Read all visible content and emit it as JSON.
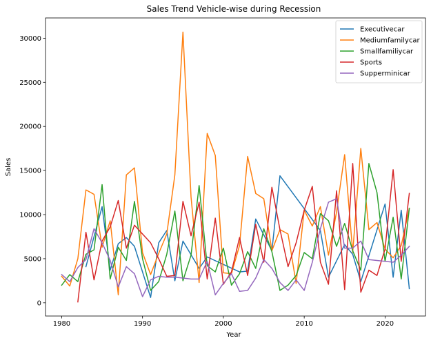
{
  "chart_data": {
    "type": "line",
    "title": "Sales Trend Vehicle-wise during Recession",
    "xlabel": "Year",
    "ylabel": "Sales",
    "xlim": [
      1978,
      2025
    ],
    "ylim": [
      -1500,
      32300
    ],
    "xticks": [
      1980,
      1990,
      2000,
      2010,
      2020
    ],
    "yticks": [
      0,
      5000,
      10000,
      15000,
      20000,
      25000,
      30000
    ],
    "grid": false,
    "legend_position": "top-right",
    "series": [
      {
        "name": "Executivecar",
        "color": "#1f77b4",
        "points": [
          [
            1983,
            4100
          ],
          [
            1985,
            10900
          ],
          [
            1986,
            3700
          ],
          [
            1987,
            6700
          ],
          [
            1988,
            7400
          ],
          [
            1989,
            6400
          ],
          [
            1991,
            600
          ],
          [
            1992,
            6800
          ],
          [
            1993,
            8200
          ],
          [
            1994,
            2500
          ],
          [
            1995,
            7000
          ],
          [
            1997,
            3900
          ],
          [
            1998,
            5200
          ],
          [
            2002,
            3500
          ],
          [
            2003,
            3600
          ],
          [
            2004,
            9500
          ],
          [
            2006,
            5900
          ],
          [
            2007,
            14400
          ],
          [
            2012,
            8200
          ],
          [
            2013,
            2900
          ],
          [
            2015,
            6600
          ],
          [
            2016,
            5500
          ],
          [
            2017,
            2400
          ],
          [
            2020,
            11200
          ],
          [
            2021,
            2900
          ],
          [
            2022,
            10500
          ],
          [
            2023,
            1600
          ]
        ]
      },
      {
        "name": "Mediumfamilycar",
        "color": "#ff7f0e",
        "points": [
          [
            1980,
            3000
          ],
          [
            1981,
            1900
          ],
          [
            1982,
            5000
          ],
          [
            1983,
            12800
          ],
          [
            1984,
            12300
          ],
          [
            1985,
            6300
          ],
          [
            1986,
            9300
          ],
          [
            1987,
            900
          ],
          [
            1988,
            14500
          ],
          [
            1989,
            15300
          ],
          [
            1990,
            5700
          ],
          [
            1991,
            3200
          ],
          [
            1992,
            5600
          ],
          [
            1993,
            7800
          ],
          [
            1994,
            14500
          ],
          [
            1995,
            30700
          ],
          [
            1996,
            12000
          ],
          [
            1997,
            2300
          ],
          [
            1998,
            19200
          ],
          [
            1999,
            16700
          ],
          [
            2000,
            3400
          ],
          [
            2001,
            3300
          ],
          [
            2002,
            6500
          ],
          [
            2003,
            16600
          ],
          [
            2004,
            12400
          ],
          [
            2005,
            11800
          ],
          [
            2006,
            5900
          ],
          [
            2007,
            8300
          ],
          [
            2008,
            7800
          ],
          [
            2009,
            2200
          ],
          [
            2010,
            10500
          ],
          [
            2011,
            8700
          ],
          [
            2012,
            10900
          ],
          [
            2013,
            5400
          ],
          [
            2014,
            10300
          ],
          [
            2015,
            16800
          ],
          [
            2016,
            5700
          ],
          [
            2017,
            17500
          ],
          [
            2018,
            8300
          ],
          [
            2019,
            9100
          ],
          [
            2020,
            6100
          ],
          [
            2021,
            5100
          ],
          [
            2022,
            6500
          ],
          [
            2023,
            10700
          ]
        ]
      },
      {
        "name": "Smallfamiliycar",
        "color": "#2ca02c",
        "points": [
          [
            1980,
            2000
          ],
          [
            1981,
            3200
          ],
          [
            1982,
            2400
          ],
          [
            1983,
            5500
          ],
          [
            1984,
            6000
          ],
          [
            1985,
            13400
          ],
          [
            1986,
            2700
          ],
          [
            1987,
            6300
          ],
          [
            1988,
            4800
          ],
          [
            1989,
            11500
          ],
          [
            1990,
            5000
          ],
          [
            1991,
            1400
          ],
          [
            1992,
            2400
          ],
          [
            1993,
            5500
          ],
          [
            1994,
            10400
          ],
          [
            1995,
            2500
          ],
          [
            1996,
            5400
          ],
          [
            1997,
            13300
          ],
          [
            1998,
            4200
          ],
          [
            1999,
            3500
          ],
          [
            2000,
            6200
          ],
          [
            2001,
            2000
          ],
          [
            2002,
            3300
          ],
          [
            2003,
            5800
          ],
          [
            2004,
            3900
          ],
          [
            2005,
            8400
          ],
          [
            2006,
            5800
          ],
          [
            2007,
            1400
          ],
          [
            2008,
            2000
          ],
          [
            2009,
            3100
          ],
          [
            2010,
            5700
          ],
          [
            2011,
            5000
          ],
          [
            2012,
            10100
          ],
          [
            2013,
            9300
          ],
          [
            2014,
            6400
          ],
          [
            2015,
            9000
          ],
          [
            2016,
            5900
          ],
          [
            2017,
            3700
          ],
          [
            2018,
            15800
          ],
          [
            2019,
            12500
          ],
          [
            2020,
            4700
          ],
          [
            2021,
            9700
          ],
          [
            2022,
            2700
          ],
          [
            2023,
            10700
          ]
        ]
      },
      {
        "name": "Sports",
        "color": "#d62728",
        "points": [
          [
            1982,
            100
          ],
          [
            1983,
            8000
          ],
          [
            1984,
            2600
          ],
          [
            1985,
            7000
          ],
          [
            1986,
            8600
          ],
          [
            1987,
            11600
          ],
          [
            1988,
            6200
          ],
          [
            1989,
            8800
          ],
          [
            1991,
            6800
          ],
          [
            1992,
            5000
          ],
          [
            1993,
            3000
          ],
          [
            1994,
            3100
          ],
          [
            1995,
            11500
          ],
          [
            1996,
            7600
          ],
          [
            1997,
            11400
          ],
          [
            1998,
            2700
          ],
          [
            1999,
            9600
          ],
          [
            2000,
            2100
          ],
          [
            2001,
            3500
          ],
          [
            2002,
            7400
          ],
          [
            2003,
            3100
          ],
          [
            2004,
            8900
          ],
          [
            2005,
            4600
          ],
          [
            2006,
            13100
          ],
          [
            2007,
            8300
          ],
          [
            2008,
            4100
          ],
          [
            2009,
            6800
          ],
          [
            2010,
            10500
          ],
          [
            2011,
            13200
          ],
          [
            2012,
            4600
          ],
          [
            2013,
            2100
          ],
          [
            2014,
            12700
          ],
          [
            2015,
            1500
          ],
          [
            2016,
            15800
          ],
          [
            2017,
            1200
          ],
          [
            2018,
            3700
          ],
          [
            2019,
            3100
          ],
          [
            2020,
            6100
          ],
          [
            2021,
            15100
          ],
          [
            2022,
            4700
          ],
          [
            2023,
            12400
          ]
        ]
      },
      {
        "name": "Supperminicar",
        "color": "#9467bd",
        "points": [
          [
            1980,
            3200
          ],
          [
            1981,
            2400
          ],
          [
            1982,
            4000
          ],
          [
            1983,
            4900
          ],
          [
            1984,
            8400
          ],
          [
            1985,
            6800
          ],
          [
            1986,
            4800
          ],
          [
            1987,
            1800
          ],
          [
            1988,
            4100
          ],
          [
            1989,
            3300
          ],
          [
            1990,
            700
          ],
          [
            1991,
            2600
          ],
          [
            1992,
            3000
          ],
          [
            1993,
            2900
          ],
          [
            1994,
            2900
          ],
          [
            1995,
            2800
          ],
          [
            1996,
            2700
          ],
          [
            1997,
            2700
          ],
          [
            1998,
            4700
          ],
          [
            1999,
            900
          ],
          [
            2000,
            2200
          ],
          [
            2001,
            3300
          ],
          [
            2002,
            1300
          ],
          [
            2003,
            1400
          ],
          [
            2004,
            2800
          ],
          [
            2005,
            4900
          ],
          [
            2006,
            3900
          ],
          [
            2007,
            2300
          ],
          [
            2008,
            1400
          ],
          [
            2009,
            2600
          ],
          [
            2010,
            1400
          ],
          [
            2011,
            4600
          ],
          [
            2012,
            8400
          ],
          [
            2013,
            11400
          ],
          [
            2014,
            11800
          ],
          [
            2015,
            6200
          ],
          [
            2016,
            6200
          ],
          [
            2017,
            7000
          ],
          [
            2018,
            4900
          ],
          [
            2019,
            4800
          ],
          [
            2020,
            4700
          ],
          [
            2021,
            4600
          ],
          [
            2022,
            5400
          ],
          [
            2023,
            6400
          ]
        ]
      }
    ]
  }
}
